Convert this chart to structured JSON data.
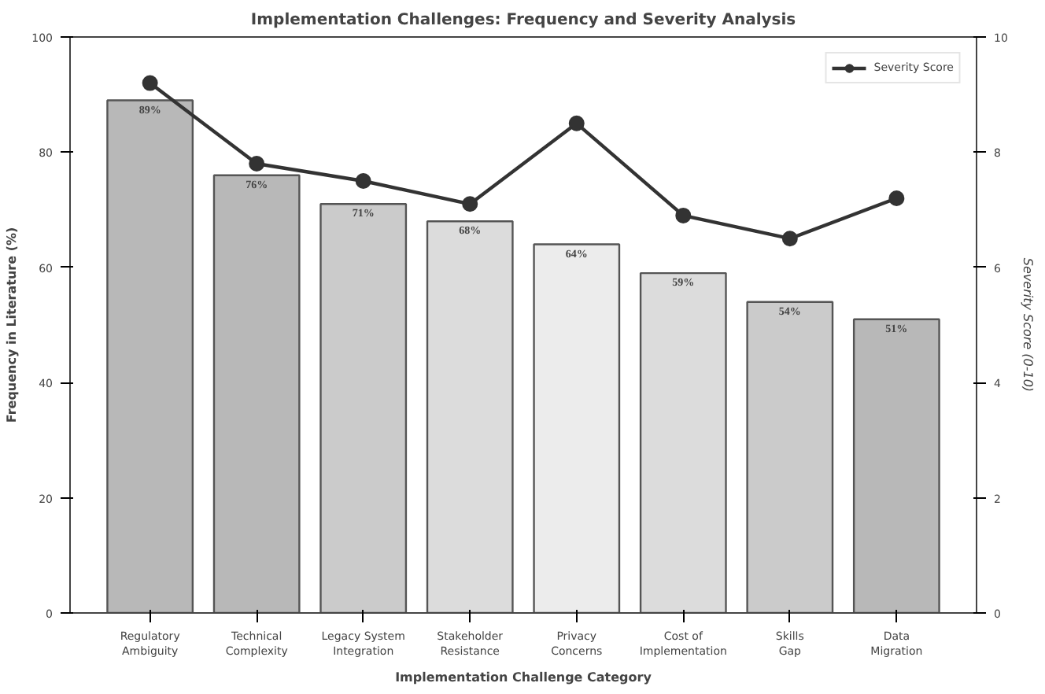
{
  "chart_data": {
    "type": "bar",
    "title": "Implementation Challenges: Frequency and Severity Analysis",
    "xlabel": "Implementation Challenge Category",
    "ylabel": "Frequency in Literature (%)",
    "y2label": "Severity Score (0-10)",
    "categories": [
      "Regulatory\nAmbiguity",
      "Technical\nComplexity",
      "Legacy System\nIntegration",
      "Stakeholder\nResistance",
      "Privacy\nConcerns",
      "Cost of\nImplementation",
      "Skills\nGap",
      "Data\nMigration"
    ],
    "series": [
      {
        "colors": [
          "#b8b8b8",
          "#b8b8b8",
          "#cbcbcb",
          "#dcdcdc",
          "#ececec",
          "#dcdcdc",
          "#cbcbcb",
          "#b8b8b8"
        ],
        "values": [
          89,
          76,
          71,
          68,
          64,
          59,
          54,
          51
        ],
        "value_labels": [
          "89%",
          "76%",
          "71%",
          "68%",
          "64%",
          "59%",
          "54%",
          "51%"
        ]
      },
      {
        "type": "line",
        "name": "Severity Score",
        "color": "#333333",
        "axis": "y2",
        "marker": "circle",
        "line_style": "solid",
        "values": [
          9.2,
          7.8,
          7.5,
          7.1,
          8.5,
          6.9,
          6.5,
          7.2
        ]
      }
    ],
    "ylim": [
      0,
      100
    ],
    "yticks": [
      0,
      20,
      40,
      60,
      80,
      100
    ],
    "y2lim": [
      0,
      10
    ],
    "y2ticks": [
      0,
      2,
      4,
      6,
      8,
      10
    ],
    "legend": "top right"
  }
}
